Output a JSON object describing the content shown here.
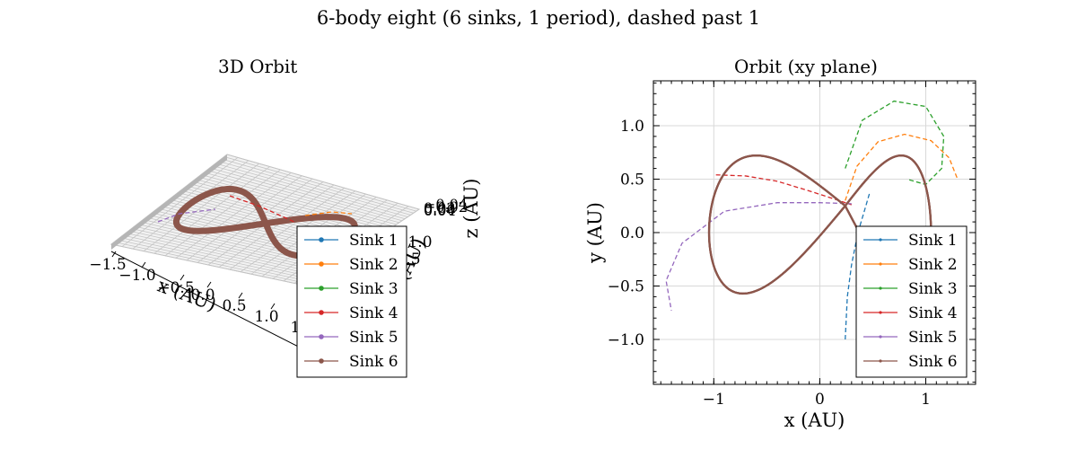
{
  "figure": {
    "title": "6-body eight (6 sinks, 1 period), dashed past 1"
  },
  "chart_data": [
    {
      "type": "line",
      "title": "3D Orbit",
      "xlabel": "x (AU)",
      "ylabel": "y (AU)",
      "zlabel": "z (AU)",
      "x_ticks": [
        "−1.5",
        "−1.0",
        "−0.5",
        "0.0",
        "0.5",
        "1.0",
        "1.5"
      ],
      "y_ticks": [
        "0.5",
        "1.0"
      ],
      "z_ticks": [
        "−0.04",
        "−0.02",
        "0.00",
        "0.02",
        "0.04"
      ],
      "legend_position": "lower right",
      "series_ref": "shared"
    },
    {
      "type": "line",
      "title": "Orbit (xy plane)",
      "xlabel": "x (AU)",
      "ylabel": "y (AU)",
      "xlim": [
        -1.57,
        1.47
      ],
      "ylim": [
        -1.42,
        1.42
      ],
      "x_ticks": [
        -1,
        0,
        1
      ],
      "x_tick_labels": [
        "−1",
        "0",
        "1"
      ],
      "y_ticks": [
        -1.0,
        -0.5,
        0.0,
        0.5,
        1.0
      ],
      "y_tick_labels": [
        "−1.0",
        "−0.5",
        "0.0",
        "0.5",
        "1.0"
      ],
      "grid": true,
      "legend_position": "lower right",
      "orbit_amplitude": [
        1.29,
        1.28
      ],
      "main_orbit_note": "figure-eight, one period solid, continuation dashed",
      "series": [
        {
          "name": "Sink 1",
          "color": "#1f77b4",
          "dashed_x": [
            0.24,
            0.26,
            0.3,
            0.36,
            0.42,
            0.47
          ],
          "dashed_y": [
            -1.0,
            -0.6,
            -0.3,
            0.0,
            0.2,
            0.37
          ]
        },
        {
          "name": "Sink 2",
          "color": "#ff7f0e",
          "dashed_x": [
            0.24,
            0.35,
            0.55,
            0.8,
            1.05,
            1.22,
            1.3
          ],
          "dashed_y": [
            0.3,
            0.62,
            0.85,
            0.92,
            0.86,
            0.7,
            0.5
          ]
        },
        {
          "name": "Sink 3",
          "color": "#2ca02c",
          "dashed_x": [
            0.24,
            0.4,
            0.7,
            1.0,
            1.17,
            1.15,
            1.0,
            0.82
          ],
          "dashed_y": [
            0.6,
            1.05,
            1.23,
            1.18,
            0.9,
            0.6,
            0.45,
            0.5
          ]
        },
        {
          "name": "Sink 4",
          "color": "#d62728",
          "dashed_x": [
            -0.98,
            -0.7,
            -0.4,
            -0.1,
            0.15,
            0.3
          ],
          "dashed_y": [
            0.54,
            0.53,
            0.48,
            0.39,
            0.31,
            0.26
          ]
        },
        {
          "name": "Sink 5",
          "color": "#9467bd",
          "dashed_x": [
            0.3,
            0.0,
            -0.4,
            -0.9,
            -1.3,
            -1.45,
            -1.4
          ],
          "dashed_y": [
            0.27,
            0.28,
            0.28,
            0.2,
            -0.1,
            -0.45,
            -0.73
          ]
        },
        {
          "name": "Sink 6",
          "color": "#8c564b"
        }
      ]
    }
  ]
}
